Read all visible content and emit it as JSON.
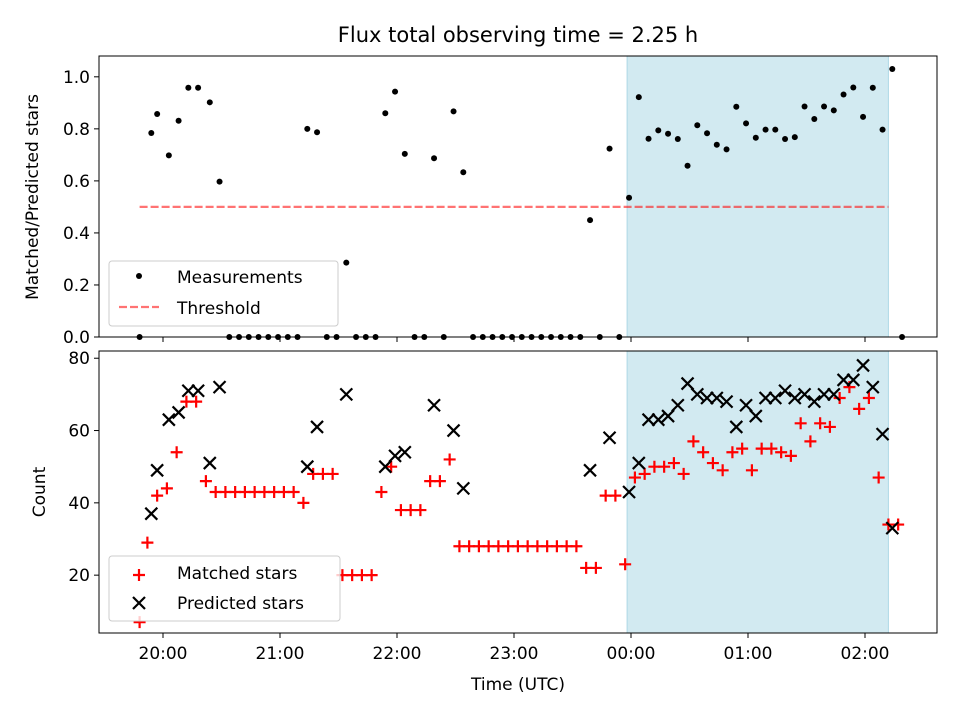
{
  "title": "Flux total observing time = 2.25 h",
  "colors": {
    "shade": "#add8e6",
    "measurement": "#000000",
    "threshold": "#ff0000",
    "matched": "#ff0000",
    "predicted": "#000000"
  },
  "chart_data": [
    {
      "type": "scatter",
      "ylabel": "Matched/Predicted stars",
      "ylim": [
        0,
        1.08
      ],
      "yticks": [
        "0.0",
        "0.2",
        "0.4",
        "0.6",
        "0.8",
        "1.0"
      ],
      "legend": {
        "placement": "lower left",
        "entries": [
          "Measurements",
          "Threshold"
        ]
      },
      "threshold": {
        "y": 0.5,
        "x_from": "19:48",
        "x_to": "02:12"
      },
      "shaded_interval": [
        "23:58",
        "02:12"
      ],
      "series": [
        {
          "name": "Measurements",
          "points": [
            [
              "19:48",
              0
            ],
            [
              "19:54",
              0.784
            ],
            [
              "19:57",
              0.857
            ],
            [
              "20:03",
              0.698
            ],
            [
              "20:08",
              0.831
            ],
            [
              "20:13",
              0.958
            ],
            [
              "20:18",
              0.958
            ],
            [
              "20:24",
              0.902
            ],
            [
              "20:29",
              0.597
            ],
            [
              "20:34",
              0
            ],
            [
              "20:39",
              0
            ],
            [
              "20:44",
              0
            ],
            [
              "20:49",
              0
            ],
            [
              "20:54",
              0
            ],
            [
              "20:59",
              0
            ],
            [
              "21:04",
              0
            ],
            [
              "21:09",
              0
            ],
            [
              "21:14",
              0.8
            ],
            [
              "21:19",
              0.787
            ],
            [
              "21:24",
              0
            ],
            [
              "21:29",
              0
            ],
            [
              "21:34",
              0.286
            ],
            [
              "21:39",
              0
            ],
            [
              "21:44",
              0
            ],
            [
              "21:49",
              0
            ],
            [
              "21:54",
              0.86
            ],
            [
              "21:59",
              0.943
            ],
            [
              "22:04",
              0.704
            ],
            [
              "22:09",
              0
            ],
            [
              "22:14",
              0
            ],
            [
              "22:19",
              0.687
            ],
            [
              "22:24",
              0
            ],
            [
              "22:29",
              0.867
            ],
            [
              "22:34",
              0.633
            ],
            [
              "22:39",
              0
            ],
            [
              "22:44",
              0
            ],
            [
              "22:49",
              0
            ],
            [
              "22:54",
              0
            ],
            [
              "22:59",
              0
            ],
            [
              "23:04",
              0
            ],
            [
              "23:09",
              0
            ],
            [
              "23:14",
              0
            ],
            [
              "23:19",
              0
            ],
            [
              "23:24",
              0
            ],
            [
              "23:29",
              0
            ],
            [
              "23:34",
              0
            ],
            [
              "23:39",
              0.449
            ],
            [
              "23:44",
              0
            ],
            [
              "23:49",
              0.724
            ],
            [
              "23:54",
              0
            ],
            [
              "23:59",
              0.535
            ],
            [
              "00:04",
              0.922
            ],
            [
              "00:09",
              0.762
            ],
            [
              "00:14",
              0.794
            ],
            [
              "00:19",
              0.781
            ],
            [
              "00:24",
              0.761
            ],
            [
              "00:29",
              0.658
            ],
            [
              "00:34",
              0.814
            ],
            [
              "00:39",
              0.783
            ],
            [
              "00:44",
              0.739
            ],
            [
              "00:49",
              0.721
            ],
            [
              "00:54",
              0.885
            ],
            [
              "00:59",
              0.821
            ],
            [
              "01:04",
              0.766
            ],
            [
              "01:09",
              0.797
            ],
            [
              "01:14",
              0.797
            ],
            [
              "01:19",
              0.761
            ],
            [
              "01:24",
              0.768
            ],
            [
              "01:29",
              0.886
            ],
            [
              "01:34",
              0.838
            ],
            [
              "01:39",
              0.886
            ],
            [
              "01:44",
              0.871
            ],
            [
              "01:49",
              0.932
            ],
            [
              "01:54",
              0.959
            ],
            [
              "01:59",
              0.846
            ],
            [
              "02:04",
              0.958
            ],
            [
              "02:09",
              0.797
            ],
            [
              "02:14",
              1.03
            ],
            [
              "02:19",
              0
            ]
          ]
        }
      ]
    },
    {
      "type": "scatter",
      "xlabel": "Time (UTC)",
      "ylabel": "Count",
      "ylim": [
        4,
        82
      ],
      "yticks": [
        "20",
        "40",
        "60",
        "80"
      ],
      "xticks": [
        "20:00",
        "21:00",
        "22:00",
        "23:00",
        "00:00",
        "01:00",
        "02:00"
      ],
      "legend": {
        "placement": "lower left",
        "entries": [
          "Matched stars",
          "Predicted stars"
        ]
      },
      "shaded_interval": [
        "23:58",
        "02:12"
      ],
      "series": [
        {
          "name": "Matched stars",
          "points": [
            [
              "19:48",
              7
            ],
            [
              "19:52",
              29
            ],
            [
              "19:57",
              42
            ],
            [
              "20:02",
              44
            ],
            [
              "20:07",
              54
            ],
            [
              "20:12",
              68
            ],
            [
              "20:17",
              68
            ],
            [
              "20:22",
              46
            ],
            [
              "20:27",
              43
            ],
            [
              "20:32",
              43
            ],
            [
              "20:37",
              43
            ],
            [
              "20:42",
              43
            ],
            [
              "20:47",
              43
            ],
            [
              "20:52",
              43
            ],
            [
              "20:57",
              43
            ],
            [
              "21:02",
              43
            ],
            [
              "21:07",
              43
            ],
            [
              "21:12",
              40
            ],
            [
              "21:17",
              48
            ],
            [
              "21:22",
              48
            ],
            [
              "21:27",
              48
            ],
            [
              "21:32",
              20
            ],
            [
              "21:37",
              20
            ],
            [
              "21:42",
              20
            ],
            [
              "21:47",
              20
            ],
            [
              "21:52",
              43
            ],
            [
              "21:57",
              50
            ],
            [
              "22:02",
              38
            ],
            [
              "22:07",
              38
            ],
            [
              "22:12",
              38
            ],
            [
              "22:17",
              46
            ],
            [
              "22:22",
              46
            ],
            [
              "22:27",
              52
            ],
            [
              "22:32",
              28
            ],
            [
              "22:37",
              28
            ],
            [
              "22:42",
              28
            ],
            [
              "22:47",
              28
            ],
            [
              "22:52",
              28
            ],
            [
              "22:57",
              28
            ],
            [
              "23:02",
              28
            ],
            [
              "23:07",
              28
            ],
            [
              "23:12",
              28
            ],
            [
              "23:17",
              28
            ],
            [
              "23:22",
              28
            ],
            [
              "23:27",
              28
            ],
            [
              "23:32",
              28
            ],
            [
              "23:37",
              22
            ],
            [
              "23:42",
              22
            ],
            [
              "23:47",
              42
            ],
            [
              "23:52",
              42
            ],
            [
              "23:57",
              23
            ],
            [
              "00:02",
              47
            ],
            [
              "00:07",
              48
            ],
            [
              "00:12",
              50
            ],
            [
              "00:17",
              50
            ],
            [
              "00:22",
              51
            ],
            [
              "00:27",
              48
            ],
            [
              "00:32",
              57
            ],
            [
              "00:37",
              54
            ],
            [
              "00:42",
              51
            ],
            [
              "00:47",
              49
            ],
            [
              "00:52",
              54
            ],
            [
              "00:57",
              55
            ],
            [
              "01:02",
              49
            ],
            [
              "01:07",
              55
            ],
            [
              "01:12",
              55
            ],
            [
              "01:17",
              54
            ],
            [
              "01:22",
              53
            ],
            [
              "01:27",
              62
            ],
            [
              "01:32",
              57
            ],
            [
              "01:37",
              62
            ],
            [
              "01:42",
              61
            ],
            [
              "01:47",
              69
            ],
            [
              "01:52",
              72
            ],
            [
              "01:57",
              66
            ],
            [
              "02:02",
              69
            ],
            [
              "02:07",
              47
            ],
            [
              "02:12",
              34
            ],
            [
              "02:17",
              34
            ]
          ]
        },
        {
          "name": "Predicted stars",
          "points": [
            [
              "19:54",
              37
            ],
            [
              "19:57",
              49
            ],
            [
              "20:03",
              63
            ],
            [
              "20:08",
              65
            ],
            [
              "20:13",
              71
            ],
            [
              "20:18",
              71
            ],
            [
              "20:24",
              51
            ],
            [
              "20:29",
              72
            ],
            [
              "21:14",
              50
            ],
            [
              "21:19",
              61
            ],
            [
              "21:34",
              70
            ],
            [
              "21:54",
              50
            ],
            [
              "21:59",
              53
            ],
            [
              "22:04",
              54
            ],
            [
              "22:19",
              67
            ],
            [
              "22:29",
              60
            ],
            [
              "22:34",
              44
            ],
            [
              "23:39",
              49
            ],
            [
              "23:49",
              58
            ],
            [
              "23:59",
              43
            ],
            [
              "00:04",
              51
            ],
            [
              "00:09",
              63
            ],
            [
              "00:14",
              63
            ],
            [
              "00:19",
              64
            ],
            [
              "00:24",
              67
            ],
            [
              "00:29",
              73
            ],
            [
              "00:34",
              70
            ],
            [
              "00:39",
              69
            ],
            [
              "00:44",
              69
            ],
            [
              "00:49",
              68
            ],
            [
              "00:54",
              61
            ],
            [
              "00:59",
              67
            ],
            [
              "01:04",
              64
            ],
            [
              "01:09",
              69
            ],
            [
              "01:14",
              69
            ],
            [
              "01:19",
              71
            ],
            [
              "01:24",
              69
            ],
            [
              "01:29",
              70
            ],
            [
              "01:34",
              68
            ],
            [
              "01:39",
              70
            ],
            [
              "01:44",
              70
            ],
            [
              "01:49",
              74
            ],
            [
              "01:54",
              74
            ],
            [
              "01:59",
              78
            ],
            [
              "02:04",
              72
            ],
            [
              "02:09",
              59
            ],
            [
              "02:14",
              33
            ]
          ]
        }
      ]
    }
  ]
}
